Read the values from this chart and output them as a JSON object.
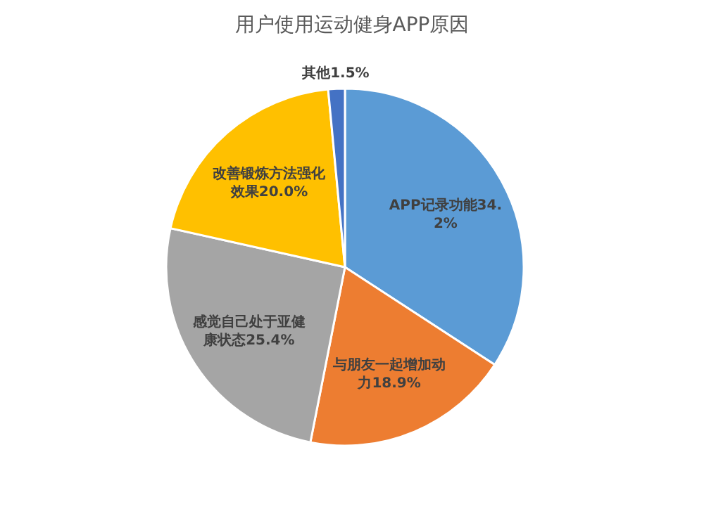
{
  "chart_data": {
    "type": "pie",
    "title": "用户使用运动健身APP原因",
    "categories": [
      "APP记录功能",
      "与朋友一起增加动力",
      "感觉自己处于亚健康状态",
      "改善锻炼方法强化效果",
      "其他"
    ],
    "values": [
      34.2,
      18.9,
      25.4,
      20.0,
      1.5
    ],
    "value_labels": [
      "34.2%",
      "18.9%",
      "25.4%",
      "20.0%",
      "1.5%"
    ],
    "colors": [
      "#5b9bd5",
      "#ed7d31",
      "#a5a5a5",
      "#ffc000",
      "#4472c4"
    ]
  }
}
